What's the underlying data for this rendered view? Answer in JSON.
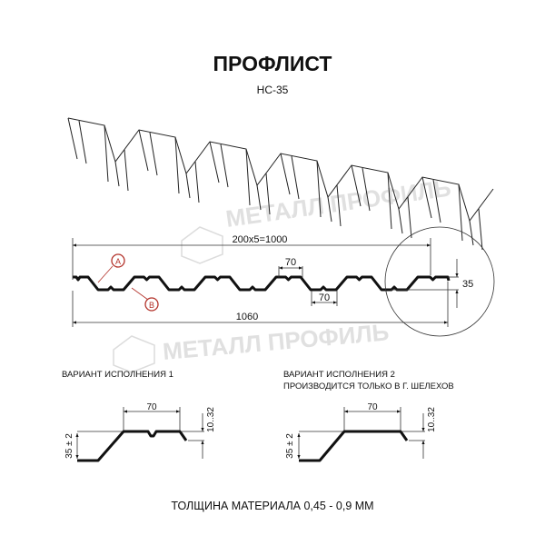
{
  "title": "ПРОФЛИСТ",
  "subtitle": "НС-35",
  "watermark": "МЕТАЛЛ ПРОФИЛЬ",
  "main_profile": {
    "dim_pitch": "200x5=1000",
    "dim_top": "70",
    "dim_bottom": "70",
    "dim_height": "35",
    "dim_total": "1060",
    "marker_a": "A",
    "marker_b": "B"
  },
  "variant1": {
    "title": "ВАРИАНТ ИСПОЛНЕНИЯ 1",
    "dim_width": "70",
    "dim_height": "35 ± 2",
    "dim_drop": "10..32"
  },
  "variant2": {
    "title": "ВАРИАНТ ИСПОЛНЕНИЯ 2",
    "note": "ПРОИЗВОДИТСЯ ТОЛЬКО В Г. ШЕЛЕХОВ",
    "dim_width": "70",
    "dim_height": "35 ± 2",
    "dim_drop": "10..32"
  },
  "footer": "ТОЛЩИНА МАТЕРИАЛА 0,45 - 0,9 ММ",
  "colors": {
    "line": "#111111",
    "marker": "#b3322a",
    "watermark": "#d6d6d6"
  }
}
